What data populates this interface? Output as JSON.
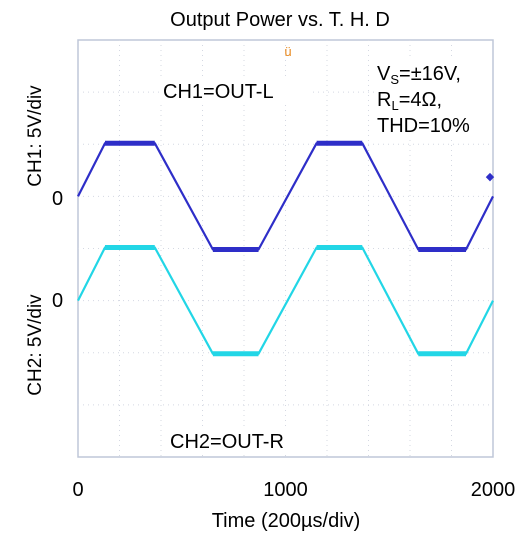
{
  "chart_data": {
    "type": "line",
    "title": "Output Power vs. T. H. D",
    "xlabel": "Time (200µs/div)",
    "x_ticks": [
      "0",
      "1000",
      "2000"
    ],
    "xlim": [
      0,
      2000
    ],
    "ylim": [
      -8,
      8
    ],
    "ylabels": [
      {
        "text": "CH1: 5V/div",
        "zero_label": "0"
      },
      {
        "text": "CH2: 5V/div",
        "zero_label": "0"
      }
    ],
    "annotation": {
      "vs_prefix": "V",
      "vs_sub": "S",
      "vs_value": "=±16V,",
      "rl_prefix": "R",
      "rl_sub": "L",
      "rl_value": "=4Ω,",
      "thd": "THD=10%"
    },
    "grid": true,
    "series": [
      {
        "name": "CH1=OUT-L",
        "color": "#2e2ec8",
        "zero_level": 1,
        "x": [
          0,
          130,
          370,
          650,
          870,
          1150,
          1370,
          1640,
          1870,
          2000
        ],
        "y": [
          0,
          5.1,
          5.1,
          -5.1,
          -5.1,
          5.1,
          5.1,
          -5.1,
          -5.1,
          0
        ]
      },
      {
        "name": "CH2=OUT-R",
        "color": "#22d6e6",
        "zero_level": -1,
        "x": [
          0,
          130,
          370,
          650,
          870,
          1150,
          1370,
          1640,
          1870,
          2000
        ],
        "y": [
          0,
          5.1,
          5.1,
          -5.1,
          -5.1,
          5.1,
          5.1,
          -5.1,
          -5.1,
          0
        ]
      }
    ]
  }
}
